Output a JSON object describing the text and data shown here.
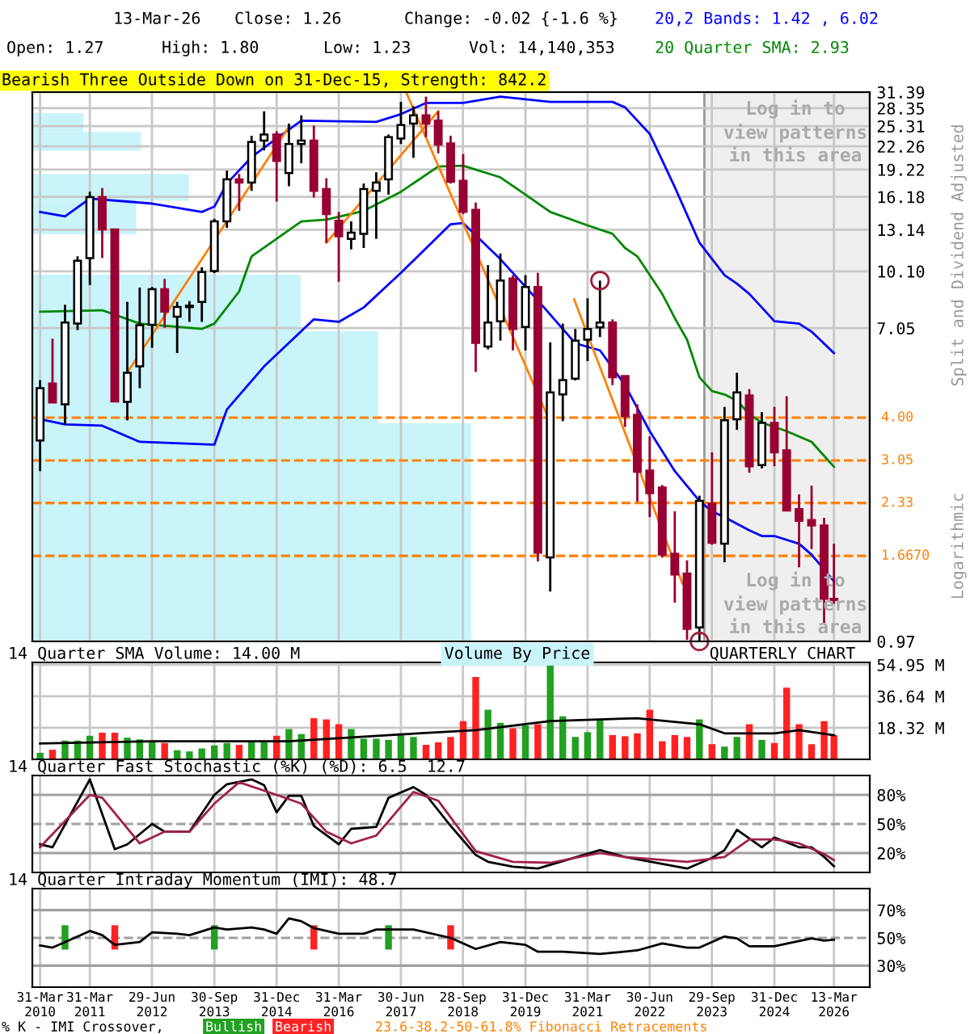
{
  "chart_data": [
    {
      "type": "candlestick",
      "title": "Bearish Three Outside Down on 31-Dec-15, Strength: 842.2",
      "ylabel": "Split and Dividend Adjusted",
      "annotations": [
        "13-Mar-26",
        "Close: 1.26",
        "Change: -0.02 {-1.6 %}",
        "Open: 1.27",
        "High: 1.80",
        "Low: 1.23",
        "Vol: 14,140,353",
        "Log in to\nview patterns\nin this area",
        "Log in to\nview patterns\nin this area",
        "QUARTERLY CHART",
        "Logarithmic",
        "Volume By Price"
      ],
      "x": [
        "2010-03-31",
        "2010-06-30",
        "2010-09-30",
        "2010-12-31",
        "2011-03-31",
        "2011-06-30",
        "2011-09-30",
        "2011-12-31",
        "2012-03-31",
        "2012-06-30",
        "2012-09-30",
        "2012-12-31",
        "2013-03-31",
        "2013-06-30",
        "2013-09-30",
        "2013-12-31",
        "2014-03-31",
        "2014-06-30",
        "2014-09-30",
        "2014-12-31",
        "2015-03-31",
        "2015-06-30",
        "2015-09-30",
        "2015-12-31",
        "2016-03-31",
        "2016-06-30",
        "2016-09-30",
        "2016-12-31",
        "2017-03-31",
        "2017-06-30",
        "2017-09-30",
        "2017-12-31",
        "2018-03-31",
        "2018-06-30",
        "2018-09-30",
        "2018-12-31",
        "2019-03-31",
        "2019-06-30",
        "2019-09-30",
        "2019-12-31",
        "2020-03-31",
        "2020-06-30",
        "2020-09-30",
        "2020-12-31",
        "2021-03-31",
        "2021-06-30",
        "2021-09-30",
        "2021-12-31",
        "2022-03-31",
        "2022-06-30",
        "2022-09-30",
        "2022-12-31",
        "2023-03-31",
        "2023-06-30",
        "2023-09-30",
        "2023-12-31",
        "2024-03-31",
        "2024-06-30",
        "2024-09-30",
        "2024-12-31",
        "2025-03-31",
        "2025-06-30",
        "2025-09-30",
        "2025-12-31",
        "2026-03-13"
      ],
      "ohlc": [
        [
          3.46,
          5.07,
          2.85,
          4.82
        ],
        [
          4.96,
          6.59,
          4.4,
          4.4
        ],
        [
          4.35,
          8.17,
          3.83,
          7.3
        ],
        [
          7.25,
          11.1,
          6.96,
          10.8
        ],
        [
          10.98,
          16.7,
          9.26,
          16.14
        ],
        [
          16.14,
          17.1,
          10.98,
          13.16
        ],
        [
          13.16,
          13.16,
          4.43,
          4.43
        ],
        [
          4.42,
          8.32,
          3.93,
          5.31
        ],
        [
          5.53,
          9.11,
          4.82,
          7.18
        ],
        [
          7.2,
          9.14,
          6.22,
          9.02
        ],
        [
          9.02,
          9.62,
          7.06,
          7.82
        ],
        [
          7.58,
          8.32,
          6.02,
          8.06
        ],
        [
          8.05,
          8.36,
          7.33,
          8.12
        ],
        [
          8.32,
          10.36,
          7.33,
          10.05
        ],
        [
          10.12,
          14.08,
          9.99,
          13.85
        ],
        [
          13.85,
          19.1,
          13.29,
          18.06
        ],
        [
          18.06,
          18.7,
          14.8,
          17.7
        ],
        [
          17.7,
          23.8,
          16.8,
          22.9
        ],
        [
          23.1,
          27.8,
          21.7,
          24.0
        ],
        [
          24.0,
          24.5,
          15.7,
          20.3
        ],
        [
          18.8,
          25.7,
          17.3,
          22.6
        ],
        [
          22.6,
          27.1,
          20.0,
          23.1
        ],
        [
          23.1,
          25.4,
          16.1,
          16.8
        ],
        [
          17.0,
          18.2,
          12.1,
          14.5
        ],
        [
          13.9,
          14.7,
          9.45,
          12.6
        ],
        [
          12.4,
          13.85,
          11.6,
          12.9
        ],
        [
          12.8,
          17.6,
          11.7,
          17.0
        ],
        [
          16.8,
          18.9,
          12.4,
          17.7
        ],
        [
          18.06,
          24.0,
          16.4,
          23.6
        ],
        [
          23.4,
          29.5,
          22.6,
          25.5
        ],
        [
          25.7,
          28.7,
          20.7,
          27.1
        ],
        [
          27.1,
          30.5,
          23.6,
          25.7
        ],
        [
          26.2,
          27.8,
          21.3,
          22.5
        ],
        [
          22.7,
          23.8,
          17.6,
          17.8
        ],
        [
          17.9,
          21.2,
          14.5,
          14.7
        ],
        [
          14.9,
          15.6,
          5.34,
          6.42
        ],
        [
          6.27,
          10.5,
          6.16,
          7.3
        ],
        [
          7.36,
          11.3,
          6.51,
          9.52
        ],
        [
          9.65,
          9.85,
          6.12,
          7.01
        ],
        [
          7.1,
          9.85,
          6.12,
          9.14
        ],
        [
          9.14,
          10.0,
          1.61,
          1.7
        ],
        [
          1.65,
          6.44,
          1.33,
          4.69
        ],
        [
          4.63,
          7.25,
          3.91,
          5.07
        ],
        [
          5.12,
          7.01,
          5.06,
          6.51
        ],
        [
          6.55,
          8.51,
          5.72,
          7.01
        ],
        [
          7.08,
          9.52,
          6.66,
          7.3
        ],
        [
          7.3,
          7.45,
          4.91,
          5.16
        ],
        [
          5.2,
          5.2,
          3.77,
          4.04
        ],
        [
          4.07,
          4.35,
          2.35,
          2.84
        ],
        [
          2.86,
          3.55,
          2.13,
          2.48
        ],
        [
          2.57,
          2.61,
          1.65,
          1.68
        ],
        [
          1.69,
          2.21,
          1.24,
          1.48
        ],
        [
          1.49,
          1.62,
          0.98,
          1.05
        ],
        [
          1.06,
          2.44,
          0.97,
          2.36
        ],
        [
          2.32,
          3.21,
          1.79,
          1.81
        ],
        [
          1.8,
          4.28,
          1.6,
          3.93
        ],
        [
          3.96,
          5.31,
          3.7,
          4.69
        ],
        [
          4.6,
          4.79,
          2.82,
          2.94
        ],
        [
          2.96,
          4.14,
          2.9,
          3.87
        ],
        [
          3.87,
          4.28,
          2.94,
          3.21
        ],
        [
          3.25,
          4.58,
          2.21,
          2.22
        ],
        [
          2.24,
          2.46,
          1.55,
          2.08
        ],
        [
          2.09,
          2.6,
          1.74,
          2.02
        ],
        [
          2.02,
          2.12,
          1.09,
          1.27
        ],
        [
          1.27,
          1.8,
          1.23,
          1.26
        ]
      ],
      "colors": [
        "#ffffff",
        "#990033",
        "#ffffff",
        "#ffffff",
        "#ffffff",
        "#990033",
        "#990033",
        "#ffffff",
        "#ffffff",
        "#ffffff",
        "#990033",
        "#ffffff",
        "#ffffff",
        "#ffffff",
        "#ffffff",
        "#ffffff",
        "#990033",
        "#ffffff",
        "#ffffff",
        "#990033",
        "#ffffff",
        "#ffffff",
        "#990033",
        "#990033",
        "#990033",
        "#ffffff",
        "#ffffff",
        "#ffffff",
        "#ffffff",
        "#ffffff",
        "#ffffff",
        "#990033",
        "#990033",
        "#990033",
        "#990033",
        "#990033",
        "#ffffff",
        "#ffffff",
        "#990033",
        "#ffffff",
        "#990033",
        "#ffffff",
        "#ffffff",
        "#ffffff",
        "#ffffff",
        "#ffffff",
        "#990033",
        "#990033",
        "#990033",
        "#990033",
        "#990033",
        "#990033",
        "#990033",
        "#ffffff",
        "#990033",
        "#ffffff",
        "#ffffff",
        "#990033",
        "#ffffff",
        "#990033",
        "#990033",
        "#990033",
        "#990033",
        "#990033",
        "#990033"
      ],
      "series": [
        {
          "type": "line",
          "name": "20,2 Bands: 1.42 , 6.02",
          "color": "#0000ff",
          "x": [
            "2010-03-31",
            "2010-09-30",
            "2011-03-31",
            "2011-12-31",
            "2012-06-30",
            "2013-06-30",
            "2013-09-30",
            "2013-12-31",
            "2014-06-30",
            "2014-12-31",
            "2015-06-30",
            "2016-12-31",
            "2017-06-30",
            "2017-12-31",
            "2018-09-30",
            "2019-06-30",
            "2020-06-30",
            "2021-09-30",
            "2021-12-31",
            "2022-06-30",
            "2022-12-31",
            "2023-06-30",
            "2023-12-31",
            "2024-03-31",
            "2024-06-30",
            "2024-09-30",
            "2024-12-31",
            "2025-06-30",
            "2025-09-30",
            "2026-03-13"
          ],
          "values": [
            14.7,
            14.3,
            16.0,
            15.7,
            15.5,
            14.7,
            15.2,
            17.6,
            20.8,
            23.4,
            26.2,
            26.0,
            27.3,
            29.3,
            29.3,
            30.5,
            29.5,
            29.5,
            28.5,
            24.1,
            17.2,
            12.1,
            9.85,
            9.34,
            8.75,
            8.03,
            7.36,
            7.25,
            6.89,
            6.02
          ]
        },
        {
          "type": "line",
          "color": "#0000ff",
          "x": [
            "2010-03-31",
            "2010-09-30",
            "2011-06-30",
            "2012-03-31",
            "2013-09-30",
            "2013-12-31",
            "2014-09-30",
            "2015-09-30",
            "2016-03-31",
            "2016-09-30",
            "2017-06-30",
            "2018-06-30",
            "2018-09-30",
            "2019-06-30",
            "2020-03-31",
            "2020-12-31",
            "2021-06-30",
            "2021-12-31",
            "2022-06-30",
            "2022-12-31",
            "2023-06-30",
            "2023-09-30",
            "2023-12-31",
            "2024-06-30",
            "2024-09-30",
            "2024-12-31",
            "2025-06-30",
            "2025-09-30",
            "2026-03-13"
          ],
          "values": [
            3.96,
            3.83,
            3.8,
            3.43,
            3.37,
            4.21,
            5.53,
            7.45,
            7.33,
            8.03,
            10.0,
            13.6,
            13.7,
            10.9,
            8.4,
            6.4,
            6.12,
            4.91,
            3.67,
            2.85,
            2.36,
            2.21,
            2.13,
            1.96,
            1.89,
            1.89,
            1.8,
            1.68,
            1.42
          ]
        },
        {
          "type": "line",
          "name": "20 Quarter SMA: 2.93",
          "color": "#008800",
          "x": [
            "2010-03-31",
            "2011-06-30",
            "2012-03-31",
            "2013-06-30",
            "2013-09-30",
            "2014-03-31",
            "2014-06-30",
            "2015-06-30",
            "2015-12-31",
            "2016-09-30",
            "2017-06-30",
            "2018-03-31",
            "2018-09-30",
            "2019-06-30",
            "2019-12-31",
            "2020-06-30",
            "2021-03-31",
            "2021-09-30",
            "2021-12-31",
            "2022-03-31",
            "2022-09-30",
            "2022-12-31",
            "2023-03-31",
            "2023-06-30",
            "2023-09-30",
            "2023-12-31",
            "2024-03-31",
            "2024-06-30",
            "2024-09-30",
            "2024-12-31",
            "2025-03-31",
            "2025-09-30",
            "2026-03-13"
          ],
          "values": [
            7.82,
            7.89,
            7.25,
            7.01,
            7.25,
            8.89,
            11.1,
            13.85,
            14.0,
            14.8,
            16.7,
            19.6,
            19.7,
            18.3,
            16.4,
            14.7,
            13.5,
            12.8,
            11.7,
            11.1,
            8.75,
            7.51,
            6.55,
            5.16,
            4.73,
            4.63,
            4.45,
            4.09,
            3.87,
            3.77,
            3.67,
            3.43,
            2.93
          ]
        },
        {
          "type": "line",
          "color": "#ff8000",
          "x": [
            "2011-12-31",
            "2015-03-31"
          ],
          "values": [
            5.32,
            25.2
          ]
        },
        {
          "type": "line",
          "color": "#ff8000",
          "x": [
            "2015-12-31",
            "2018-03-31"
          ],
          "values": [
            12.1,
            27.8
          ]
        },
        {
          "type": "line",
          "color": "#ff8000",
          "x": [
            "2017-08-07",
            "2020-06-30"
          ],
          "values": [
            31.39,
            3.88
          ]
        },
        {
          "type": "line",
          "color": "#ff8000",
          "x": [
            "2020-12-22",
            "2023-02-25"
          ],
          "values": [
            8.46,
            1.4
          ]
        },
        {
          "type": "scatter",
          "marker": "circle",
          "color": "#a0203c",
          "x": [
            "2021-06-30",
            "2023-06-30"
          ],
          "values": [
            9.52,
            0.97
          ]
        }
      ],
      "xlim": [
        "2010-02-02",
        "2026-12-01"
      ],
      "xticks": [
        {
          "value": "2010-03-31",
          "label": null
        },
        {
          "value": "2011-03-31",
          "label": null
        },
        {
          "value": "2012-06-29",
          "label": null
        },
        {
          "value": "2013-09-30",
          "label": null
        },
        {
          "value": "2014-12-31",
          "label": null
        },
        {
          "value": "2016-03-31",
          "label": null
        },
        {
          "value": "2017-06-30",
          "label": null
        },
        {
          "value": "2018-09-28",
          "label": null
        },
        {
          "value": "2019-12-31",
          "label": null
        },
        {
          "value": "2021-03-31",
          "label": null
        },
        {
          "value": "2022-06-30",
          "label": null
        },
        {
          "value": "2023-09-29",
          "label": null
        },
        {
          "value": "2024-12-31",
          "label": null
        },
        {
          "value": "2026-03-13",
          "label": null
        }
      ],
      "ylim": [
        0.97,
        31.39
      ],
      "yticks": [
        0.97,
        7.05,
        {
          "value": 10.1,
          "label": "10.10"
        },
        13.14,
        16.18,
        19.22,
        22.26,
        25.31,
        28.35,
        31.39
      ],
      "log": true,
      "grid": true,
      "legend": "top right",
      "tick_labels": "y",
      "ref_lines": [
        {
          "axis": "y",
          "value": 4.0,
          "label": "4.00",
          "color": "#ff8000",
          "line_style": "dashed"
        },
        {
          "axis": "y",
          "value": 3.05,
          "label": "3.05",
          "color": "#ff8000",
          "line_style": "dashed"
        },
        {
          "axis": "y",
          "value": 2.33,
          "label": "2.33",
          "color": "#ff8000",
          "line_style": "dashed"
        },
        {
          "axis": "y",
          "value": 1.667,
          "label": "1.6670",
          "color": "#ff8000",
          "line_style": "dashed"
        }
      ],
      "bands": [
        {
          "axis": "x",
          "from": "2023-08-05",
          "to": "2026-12-01",
          "color": "#efefef"
        }
      ]
    },
    {
      "type": "bar",
      "title": "14 Quarter SMA Volume: 14.00 M",
      "x": [
        "2010-03-31",
        "2010-06-30",
        "2010-09-30",
        "2010-12-31",
        "2011-03-31",
        "2011-06-30",
        "2011-09-30",
        "2011-12-31",
        "2012-03-31",
        "2012-06-30",
        "2012-09-30",
        "2012-12-31",
        "2013-03-31",
        "2013-06-30",
        "2013-09-30",
        "2013-12-31",
        "2014-03-31",
        "2014-06-30",
        "2014-09-30",
        "2014-12-31",
        "2015-03-31",
        "2015-06-30",
        "2015-09-30",
        "2015-12-31",
        "2016-03-31",
        "2016-06-30",
        "2016-09-30",
        "2016-12-31",
        "2017-03-31",
        "2017-06-30",
        "2017-09-30",
        "2017-12-31",
        "2018-03-31",
        "2018-06-30",
        "2018-09-30",
        "2018-12-31",
        "2019-03-31",
        "2019-06-30",
        "2019-09-30",
        "2019-12-31",
        "2020-03-31",
        "2020-06-30",
        "2020-09-30",
        "2020-12-31",
        "2021-03-31",
        "2021-06-30",
        "2021-09-30",
        "2021-12-31",
        "2022-03-31",
        "2022-06-30",
        "2022-09-30",
        "2022-12-31",
        "2023-03-31",
        "2023-06-30",
        "2023-09-30",
        "2023-12-31",
        "2024-03-31",
        "2024-06-30",
        "2024-09-30",
        "2024-12-31",
        "2025-03-31",
        "2025-06-30",
        "2025-09-30",
        "2025-12-31",
        "2026-03-13"
      ],
      "series": [
        {
          "type": "bar",
          "values": [
            3.8,
            5.6,
            10.9,
            10.9,
            13.7,
            15.5,
            15.5,
            12.6,
            11.6,
            10.5,
            9.5,
            5.3,
            4.6,
            6.3,
            8.1,
            9.5,
            8.4,
            9.9,
            10.9,
            13.7,
            17.6,
            14.7,
            23.9,
            23.2,
            20.4,
            17.6,
            12.0,
            12.0,
            11.3,
            15.1,
            13.0,
            8.4,
            9.9,
            13.0,
            22.2,
            47.9,
            28.8,
            21.2,
            18.0,
            19.7,
            20.4,
            56.0,
            25.0,
            13.0,
            15.8,
            23.2,
            14.1,
            13.4,
            15.1,
            28.8,
            10.5,
            14.1,
            13.0,
            23.2,
            8.8,
            7.4,
            13.0,
            20.4,
            11.3,
            9.5,
            41.6,
            20.4,
            8.8,
            22.2,
            14.14
          ],
          "colors": [
            "#22a022",
            "#ff2222",
            "#22a022",
            "#22a022",
            "#22a022",
            "#ff2222",
            "#ff2222",
            "#22a022",
            "#22a022",
            "#22a022",
            "#ff2222",
            "#22a022",
            "#22a022",
            "#22a022",
            "#22a022",
            "#22a022",
            "#ff2222",
            "#22a022",
            "#22a022",
            "#ff2222",
            "#22a022",
            "#22a022",
            "#ff2222",
            "#ff2222",
            "#ff2222",
            "#22a022",
            "#22a022",
            "#22a022",
            "#22a022",
            "#22a022",
            "#22a022",
            "#ff2222",
            "#ff2222",
            "#ff2222",
            "#ff2222",
            "#ff2222",
            "#22a022",
            "#22a022",
            "#ff2222",
            "#22a022",
            "#ff2222",
            "#22a022",
            "#22a022",
            "#22a022",
            "#22a022",
            "#22a022",
            "#ff2222",
            "#ff2222",
            "#ff2222",
            "#ff2222",
            "#ff2222",
            "#ff2222",
            "#ff2222",
            "#22a022",
            "#ff2222",
            "#22a022",
            "#22a022",
            "#ff2222",
            "#22a022",
            "#ff2222",
            "#ff2222",
            "#ff2222",
            "#ff2222",
            "#ff2222",
            "#ff2222"
          ]
        },
        {
          "type": "line",
          "color": "#000000",
          "x": [
            "2010-03-31",
            "2012-06-30",
            "2015-03-31",
            "2017-06-30",
            "2018-12-31",
            "2020-06-30",
            "2022-03-31",
            "2023-06-30",
            "2023-12-31",
            "2024-12-31",
            "2025-06-30",
            "2026-03-13"
          ],
          "values": [
            9.2,
            10.5,
            10.5,
            14.5,
            16.9,
            22.2,
            23.9,
            20.4,
            15.1,
            15.1,
            16.9,
            14.0
          ]
        }
      ],
      "xlim": [
        "2010-02-02",
        "2026-12-01"
      ],
      "xticks": [
        {
          "value": "2010-03-31",
          "label": null
        },
        {
          "value": "2011-03-31",
          "label": null
        },
        {
          "value": "2012-06-29",
          "label": null
        },
        {
          "value": "2013-09-30",
          "label": null
        },
        {
          "value": "2014-12-31",
          "label": null
        },
        {
          "value": "2016-03-31",
          "label": null
        },
        {
          "value": "2017-06-30",
          "label": null
        },
        {
          "value": "2018-09-28",
          "label": null
        },
        {
          "value": "2019-12-31",
          "label": null
        },
        {
          "value": "2021-03-31",
          "label": null
        },
        {
          "value": "2022-06-30",
          "label": null
        },
        {
          "value": "2023-09-29",
          "label": null
        },
        {
          "value": "2024-12-31",
          "label": null
        },
        {
          "value": "2026-03-13",
          "label": null
        }
      ],
      "ylim": [
        0,
        56.3
      ],
      "yticks": [
        {
          "value": 18.32,
          "label": "18.32 M"
        },
        {
          "value": 36.64,
          "label": "36.64 M"
        },
        {
          "value": 54.95,
          "label": "54.95 M"
        }
      ],
      "grid": true,
      "tick_labels": "y"
    },
    {
      "type": "line",
      "title": "14 Quarter Fast Stochastic (%K) (%D): 6.5  12.7",
      "series": [
        {
          "type": "line",
          "color": "#000000",
          "x": [
            "2010-03-31",
            "2010-06-30",
            "2011-03-31",
            "2011-09-30",
            "2011-12-31",
            "2012-06-30",
            "2012-09-30",
            "2013-03-31",
            "2013-09-30",
            "2013-12-31",
            "2014-06-30",
            "2014-09-30",
            "2014-12-31",
            "2015-03-31",
            "2015-06-30",
            "2015-09-30",
            "2016-03-31",
            "2016-06-30",
            "2016-12-31",
            "2017-03-31",
            "2017-09-30",
            "2017-12-31",
            "2018-06-30",
            "2018-12-31",
            "2019-03-31",
            "2019-09-30",
            "2020-03-31",
            "2021-06-30",
            "2021-12-31",
            "2023-03-31",
            "2023-09-30",
            "2023-12-31",
            "2024-03-31",
            "2024-09-30",
            "2024-12-31",
            "2025-06-30",
            "2025-09-30",
            "2025-12-31",
            "2026-03-13"
          ],
          "values": [
            29,
            26,
            96,
            24,
            29,
            50,
            42,
            42,
            80,
            91,
            96,
            90,
            62,
            79,
            79,
            48,
            29,
            45,
            47,
            77,
            88,
            80,
            48,
            18,
            11,
            6,
            4,
            23,
            16,
            4,
            15,
            23,
            44,
            26,
            36,
            26,
            26,
            16,
            6.5
          ]
        },
        {
          "type": "line",
          "color": "#a0204c",
          "x": [
            "2010-03-31",
            "2011-03-31",
            "2011-06-30",
            "2012-03-31",
            "2012-09-30",
            "2013-03-31",
            "2013-09-30",
            "2014-03-31",
            "2014-12-31",
            "2015-06-30",
            "2015-12-31",
            "2016-06-30",
            "2016-12-31",
            "2017-09-30",
            "2018-03-31",
            "2018-12-31",
            "2019-09-30",
            "2020-06-30",
            "2021-06-30",
            "2021-12-31",
            "2023-03-31",
            "2023-12-31",
            "2024-06-30",
            "2024-12-31",
            "2025-06-30",
            "2025-12-31",
            "2026-03-13"
          ],
          "values": [
            26,
            80,
            77,
            30,
            42,
            42,
            71,
            93,
            80,
            71,
            42,
            30,
            38,
            83,
            74,
            22,
            11,
            10,
            20,
            16,
            11,
            16,
            34,
            34,
            30,
            19,
            12.7
          ]
        }
      ],
      "xlim": [
        "2010-02-02",
        "2026-12-01"
      ],
      "xticks": [
        {
          "value": "2010-03-31",
          "label": null
        },
        {
          "value": "2011-03-31",
          "label": null
        },
        {
          "value": "2012-06-29",
          "label": null
        },
        {
          "value": "2013-09-30",
          "label": null
        },
        {
          "value": "2014-12-31",
          "label": null
        },
        {
          "value": "2016-03-31",
          "label": null
        },
        {
          "value": "2017-06-30",
          "label": null
        },
        {
          "value": "2018-09-28",
          "label": null
        },
        {
          "value": "2019-12-31",
          "label": null
        },
        {
          "value": "2021-03-31",
          "label": null
        },
        {
          "value": "2022-06-30",
          "label": null
        },
        {
          "value": "2023-09-29",
          "label": null
        },
        {
          "value": "2024-12-31",
          "label": null
        },
        {
          "value": "2026-03-13",
          "label": null
        }
      ],
      "ylim": [
        0,
        100
      ],
      "yticks": [
        {
          "value": 20,
          "label": "20%"
        },
        {
          "value": 50,
          "label": "50%"
        },
        {
          "value": 80,
          "label": "80%"
        }
      ],
      "grid": "x",
      "tick_labels": "y",
      "ref_lines": [
        {
          "axis": "y",
          "value": 80,
          "color": "#a0a0a0",
          "line_style": "solid"
        },
        {
          "axis": "y",
          "value": 50,
          "color": "#a0a0a0",
          "line_style": "dashed"
        },
        {
          "axis": "y",
          "value": 20,
          "color": "#a0a0a0",
          "line_style": "solid"
        }
      ]
    },
    {
      "type": "line",
      "title": "14 Quarter Intraday Momentum (IMI): 48.7",
      "annotations": [
        "% K - IMI Crossover,",
        "Bullish",
        "Bearish",
        "23.6-38.2-50-61.8% Fibonacci Retracements"
      ],
      "series": [
        {
          "type": "bar",
          "x": [
            "2010-09-30",
            "2011-09-30",
            "2013-09-30",
            "2015-09-30",
            "2017-03-31",
            "2018-06-30"
          ],
          "base": [
            41.6,
            41.6,
            41.6,
            41.6,
            41.6,
            41.6
          ],
          "values": [
            17.5,
            17.5,
            17.5,
            17.5,
            17.5,
            17.5
          ],
          "colors": [
            "#22a022",
            "#ff2222",
            "#22a022",
            "#ff2222",
            "#22a022",
            "#ff2222"
          ]
        },
        {
          "type": "line",
          "color": "#000000",
          "x": [
            "2010-03-31",
            "2010-06-30",
            "2010-09-30",
            "2011-03-31",
            "2011-06-30",
            "2011-09-30",
            "2012-03-31",
            "2012-06-30",
            "2012-12-31",
            "2013-03-31",
            "2013-09-30",
            "2013-12-31",
            "2014-06-30",
            "2014-09-30",
            "2014-12-31",
            "2015-03-31",
            "2015-06-30",
            "2015-09-30",
            "2016-03-31",
            "2016-09-30",
            "2016-12-31",
            "2017-09-30",
            "2018-06-30",
            "2018-12-31",
            "2019-06-30",
            "2019-12-31",
            "2020-03-31",
            "2020-09-30",
            "2021-06-30",
            "2022-03-31",
            "2022-09-30",
            "2023-03-31",
            "2023-06-30",
            "2023-12-31",
            "2024-03-31",
            "2024-06-30",
            "2024-12-31",
            "2025-09-30",
            "2025-12-31",
            "2026-03-13"
          ],
          "values": [
            44.5,
            43,
            47,
            55,
            52,
            45,
            47,
            54,
            53,
            52,
            57.5,
            56,
            57.5,
            56,
            53,
            64,
            62,
            57,
            53,
            53,
            56,
            56,
            50,
            42,
            47,
            45,
            40,
            40,
            38.4,
            41,
            46,
            43,
            43,
            51,
            49.6,
            44,
            44,
            49.6,
            48,
            48.7
          ]
        }
      ],
      "xlim": [
        "2010-02-02",
        "2026-12-01"
      ],
      "xticks": [
        {
          "value": "2010-03-31",
          "label": "31-Mar\n2010"
        },
        {
          "value": "2011-03-31",
          "label": "31-Mar\n2011"
        },
        {
          "value": "2012-06-29",
          "label": "29-Jun\n2012"
        },
        {
          "value": "2013-09-30",
          "label": "30-Sep\n2013"
        },
        {
          "value": "2014-12-31",
          "label": "31-Dec\n2014"
        },
        {
          "value": "2016-03-31",
          "label": "31-Mar\n2016"
        },
        {
          "value": "2017-06-30",
          "label": "30-Jun\n2017"
        },
        {
          "value": "2018-09-28",
          "label": "28-Sep\n2018"
        },
        {
          "value": "2019-12-31",
          "label": "31-Dec\n2019"
        },
        {
          "value": "2021-03-31",
          "label": "31-Mar\n2021"
        },
        {
          "value": "2022-06-30",
          "label": "30-Jun\n2022"
        },
        {
          "value": "2023-09-29",
          "label": "29-Sep\n2023"
        },
        {
          "value": "2024-12-31",
          "label": "31-Dec\n2024"
        },
        {
          "value": "2026-03-13",
          "label": "13-Mar\n2026"
        }
      ],
      "ylim": [
        14.5,
        85.5
      ],
      "yticks": [
        {
          "value": 30,
          "label": "30%"
        },
        {
          "value": 50,
          "label": "50%"
        },
        {
          "value": 70,
          "label": "70%"
        }
      ],
      "grid": "x",
      "ref_lines": [
        {
          "axis": "y",
          "value": 70,
          "color": "#a0a0a0",
          "line_style": "solid"
        },
        {
          "axis": "y",
          "value": 50,
          "color": "#a0a0a0",
          "line_style": "dashed"
        },
        {
          "axis": "y",
          "value": 30,
          "color": "#a0a0a0",
          "line_style": "solid"
        }
      ]
    }
  ]
}
